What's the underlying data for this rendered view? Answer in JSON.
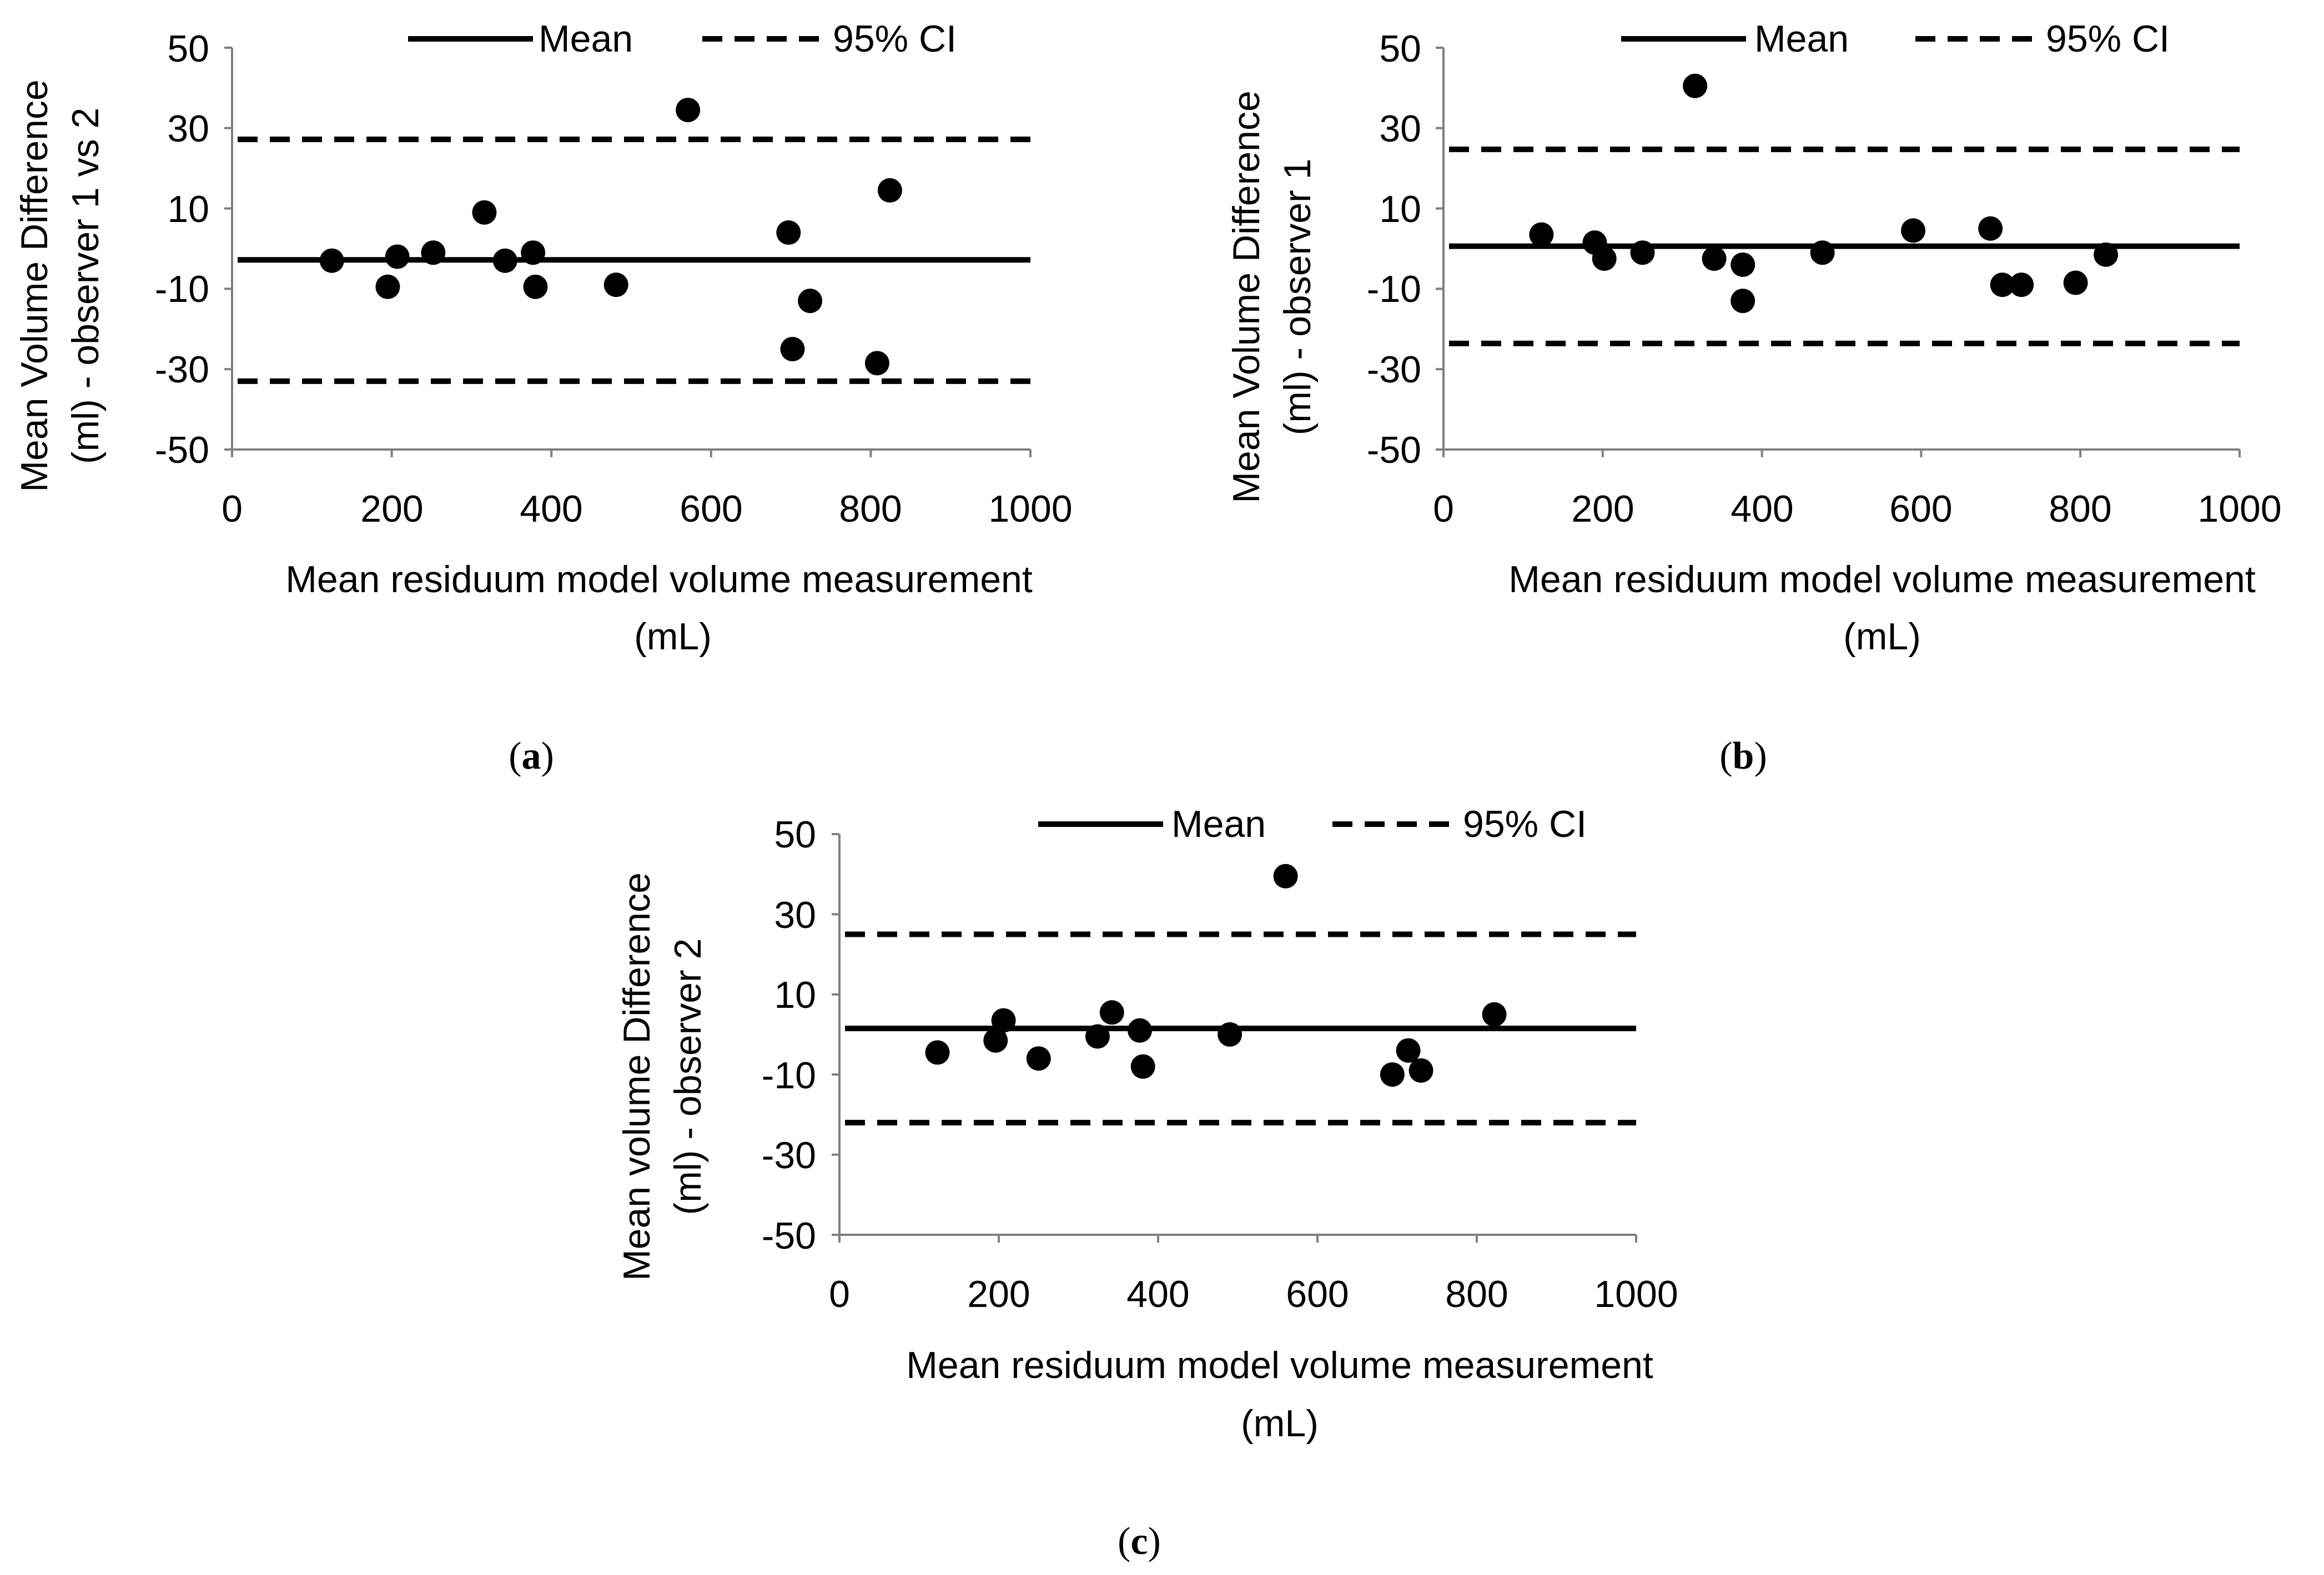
{
  "chart_data": [
    {
      "panel": "a",
      "type": "scatter",
      "xlabel_lines": [
        "Mean residuum model volume measurement",
        "(mL)"
      ],
      "ylabel_lines": [
        "Mean Volume Difference",
        "(ml) - observer 1 vs 2"
      ],
      "xlim": [
        0,
        1000
      ],
      "ylim": [
        -50,
        50
      ],
      "xticks": [
        0,
        200,
        400,
        600,
        800,
        1000
      ],
      "yticks": [
        -50,
        -30,
        -10,
        10,
        30,
        50
      ],
      "legend": {
        "mean_label": "Mean",
        "ci_label": "95% CI",
        "position": "top"
      },
      "mean": -2.8,
      "ci": [
        -33,
        27.2
      ],
      "points": [
        {
          "x": 125,
          "y": -3
        },
        {
          "x": 195,
          "y": -9.5
        },
        {
          "x": 207,
          "y": -2
        },
        {
          "x": 252,
          "y": -1
        },
        {
          "x": 316,
          "y": 9
        },
        {
          "x": 342,
          "y": -3
        },
        {
          "x": 377,
          "y": -1
        },
        {
          "x": 380,
          "y": -9.5
        },
        {
          "x": 481,
          "y": -9
        },
        {
          "x": 571,
          "y": 34.5
        },
        {
          "x": 697,
          "y": 4
        },
        {
          "x": 702,
          "y": -25
        },
        {
          "x": 724,
          "y": -13
        },
        {
          "x": 808,
          "y": -28.5
        },
        {
          "x": 824,
          "y": 14.5
        }
      ]
    },
    {
      "panel": "b",
      "type": "scatter",
      "xlabel_lines": [
        "Mean residuum model volume measurement",
        "(mL)"
      ],
      "ylabel_lines": [
        "Mean Volume Difference",
        "(ml) - observer 1"
      ],
      "xlim": [
        0,
        1000
      ],
      "ylim": [
        -50,
        50
      ],
      "xticks": [
        0,
        200,
        400,
        600,
        800,
        1000
      ],
      "yticks": [
        -50,
        -30,
        -10,
        10,
        30,
        50
      ],
      "legend": {
        "mean_label": "Mean",
        "ci_label": "95% CI",
        "position": "top"
      },
      "mean": 0.6,
      "ci": [
        -23.6,
        24.7
      ],
      "points": [
        {
          "x": 123,
          "y": 3.5
        },
        {
          "x": 190,
          "y": 1.5
        },
        {
          "x": 202,
          "y": -2.5
        },
        {
          "x": 250,
          "y": -1
        },
        {
          "x": 316,
          "y": 40.5
        },
        {
          "x": 340,
          "y": -2.5
        },
        {
          "x": 376,
          "y": -4
        },
        {
          "x": 376,
          "y": -13
        },
        {
          "x": 476,
          "y": -1
        },
        {
          "x": 590,
          "y": 4.5
        },
        {
          "x": 687,
          "y": 5
        },
        {
          "x": 702,
          "y": -9
        },
        {
          "x": 726,
          "y": -9
        },
        {
          "x": 794,
          "y": -8.5
        },
        {
          "x": 832,
          "y": -1.5
        }
      ]
    },
    {
      "panel": "c",
      "type": "scatter",
      "xlabel_lines": [
        "Mean residuum model volume measurement",
        "(mL)"
      ],
      "ylabel_lines": [
        "Mean volume Difference",
        "(ml) - observer 2"
      ],
      "xlim": [
        0,
        1000
      ],
      "ylim": [
        -50,
        50
      ],
      "xticks": [
        0,
        200,
        400,
        600,
        800,
        1000
      ],
      "yticks": [
        -50,
        -30,
        -10,
        10,
        30,
        50
      ],
      "legend": {
        "mean_label": "Mean",
        "ci_label": "95% CI",
        "position": "top"
      },
      "mean": 1.5,
      "ci": [
        -22,
        25
      ],
      "points": [
        {
          "x": 123,
          "y": -4.5
        },
        {
          "x": 196,
          "y": -1.5
        },
        {
          "x": 206,
          "y": 3.5
        },
        {
          "x": 250,
          "y": -6
        },
        {
          "x": 324,
          "y": -0.5
        },
        {
          "x": 342,
          "y": 5.5
        },
        {
          "x": 377,
          "y": 1
        },
        {
          "x": 381,
          "y": -8
        },
        {
          "x": 490,
          "y": 0
        },
        {
          "x": 560,
          "y": 39.5
        },
        {
          "x": 694,
          "y": -10
        },
        {
          "x": 714,
          "y": -4
        },
        {
          "x": 730,
          "y": -9
        },
        {
          "x": 822,
          "y": 5
        }
      ]
    }
  ]
}
